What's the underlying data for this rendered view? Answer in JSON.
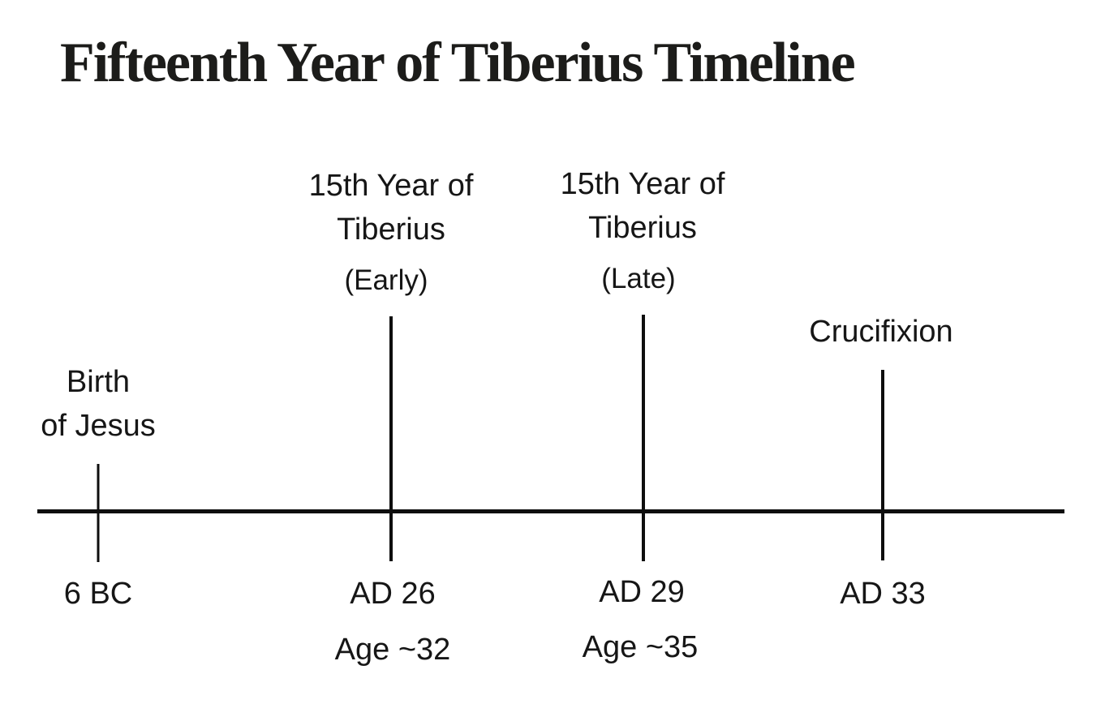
{
  "title": "Fifteenth Year of Tiberius Timeline",
  "colors": {
    "ink": "#0e0e0e",
    "text": "#161616",
    "background": "#ffffff"
  },
  "timeline": {
    "type": "horizontal-timeline",
    "events": [
      {
        "name": "birth-of-jesus",
        "label_line1": "Birth",
        "label_line2": "of Jesus",
        "year": "6 BC"
      },
      {
        "name": "fifteenth-year-of-tiberius-early",
        "label_line1": "15th Year of",
        "label_line2": "Tiberius",
        "qualifier": "(Early)",
        "year": "AD 26",
        "age": "Age ~32"
      },
      {
        "name": "fifteenth-year-of-tiberius-late",
        "label_line1": "15th Year of",
        "label_line2": "Tiberius",
        "qualifier": "(Late)",
        "year": "AD 29",
        "age": "Age ~35"
      },
      {
        "name": "crucifixion",
        "label_line1": "Crucifixion",
        "year": "AD 33"
      }
    ]
  }
}
